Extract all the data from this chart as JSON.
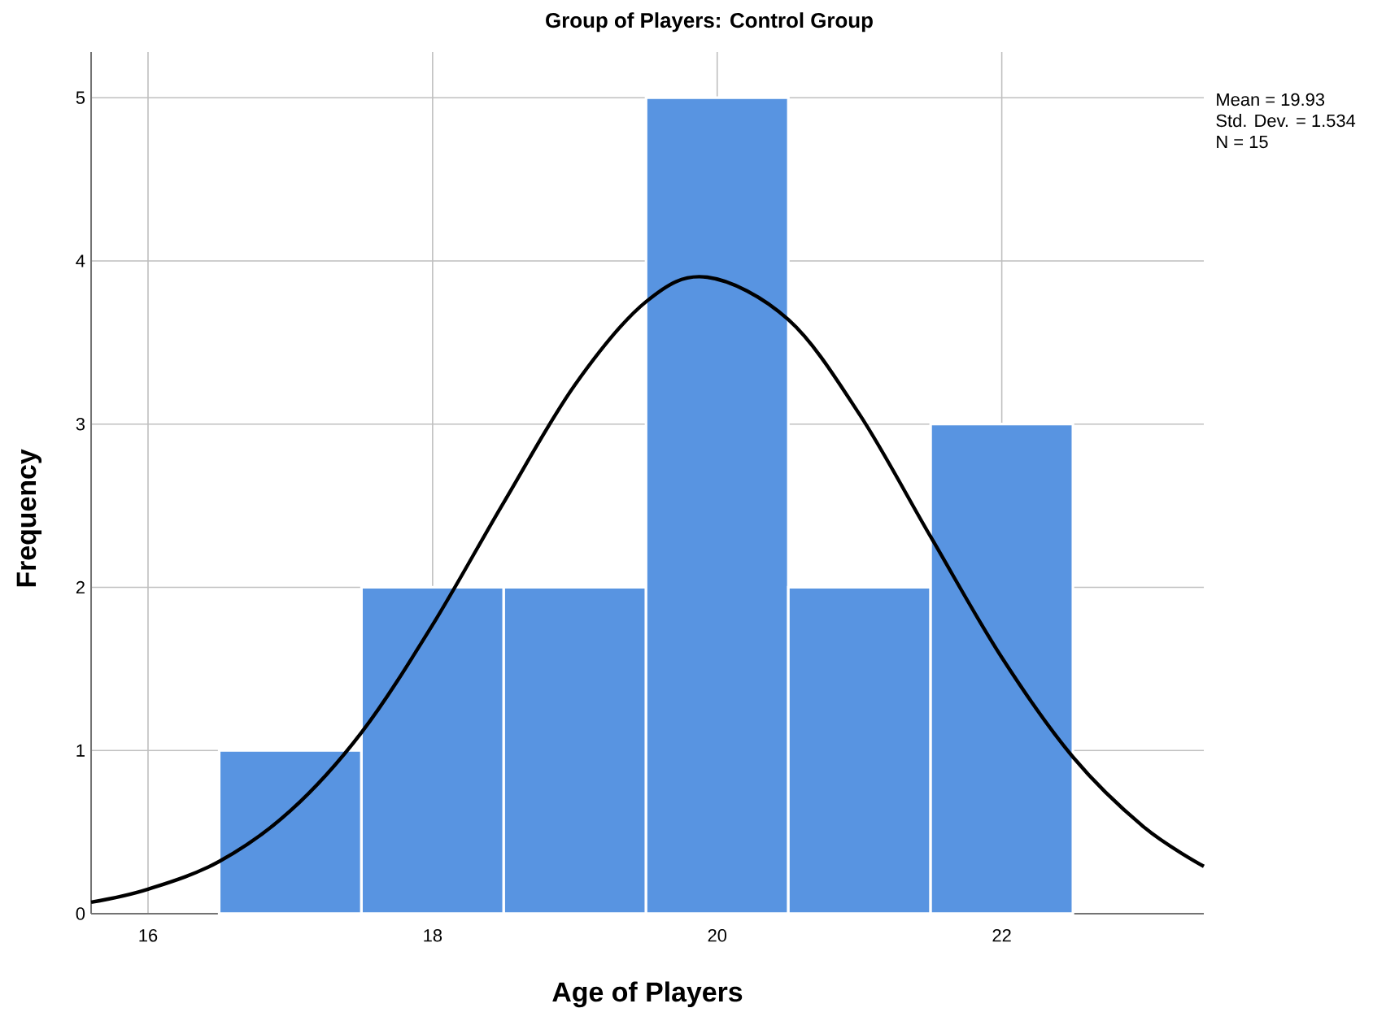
{
  "chart_data": {
    "type": "histogram",
    "title": "Group  of Players: Control Group",
    "xlabel": "Age of Players",
    "ylabel": "Frequency",
    "bins": [
      16.5,
      17.5,
      18.5,
      19.5,
      20.5,
      21.5,
      22.5
    ],
    "values": [
      1,
      2,
      2,
      5,
      2,
      3
    ],
    "color": "#5894e1",
    "series": [
      {
        "type": "line",
        "color": "#000000",
        "x": [
          15.6,
          16.0,
          16.5,
          17.0,
          17.5,
          18.0,
          18.5,
          19.0,
          19.5,
          19.93,
          20.5,
          21.0,
          21.5,
          22.0,
          22.5,
          23.0,
          23.42
        ],
        "values": [
          0.07,
          0.15,
          0.32,
          0.63,
          1.11,
          1.77,
          2.52,
          3.24,
          3.75,
          3.9,
          3.64,
          3.06,
          2.31,
          1.57,
          0.96,
          0.53,
          0.29
        ]
      }
    ],
    "xlim": [
      15.6,
      23.42
    ],
    "ylim": [
      0,
      5.28
    ],
    "xticks": [
      16,
      18,
      20,
      22
    ],
    "yticks": [
      0,
      1,
      2,
      3,
      4,
      5
    ],
    "grid": true,
    "annotations": [
      "Mean = 19.93",
      "Std. Dev. = 1.534",
      "N = 15"
    ]
  }
}
